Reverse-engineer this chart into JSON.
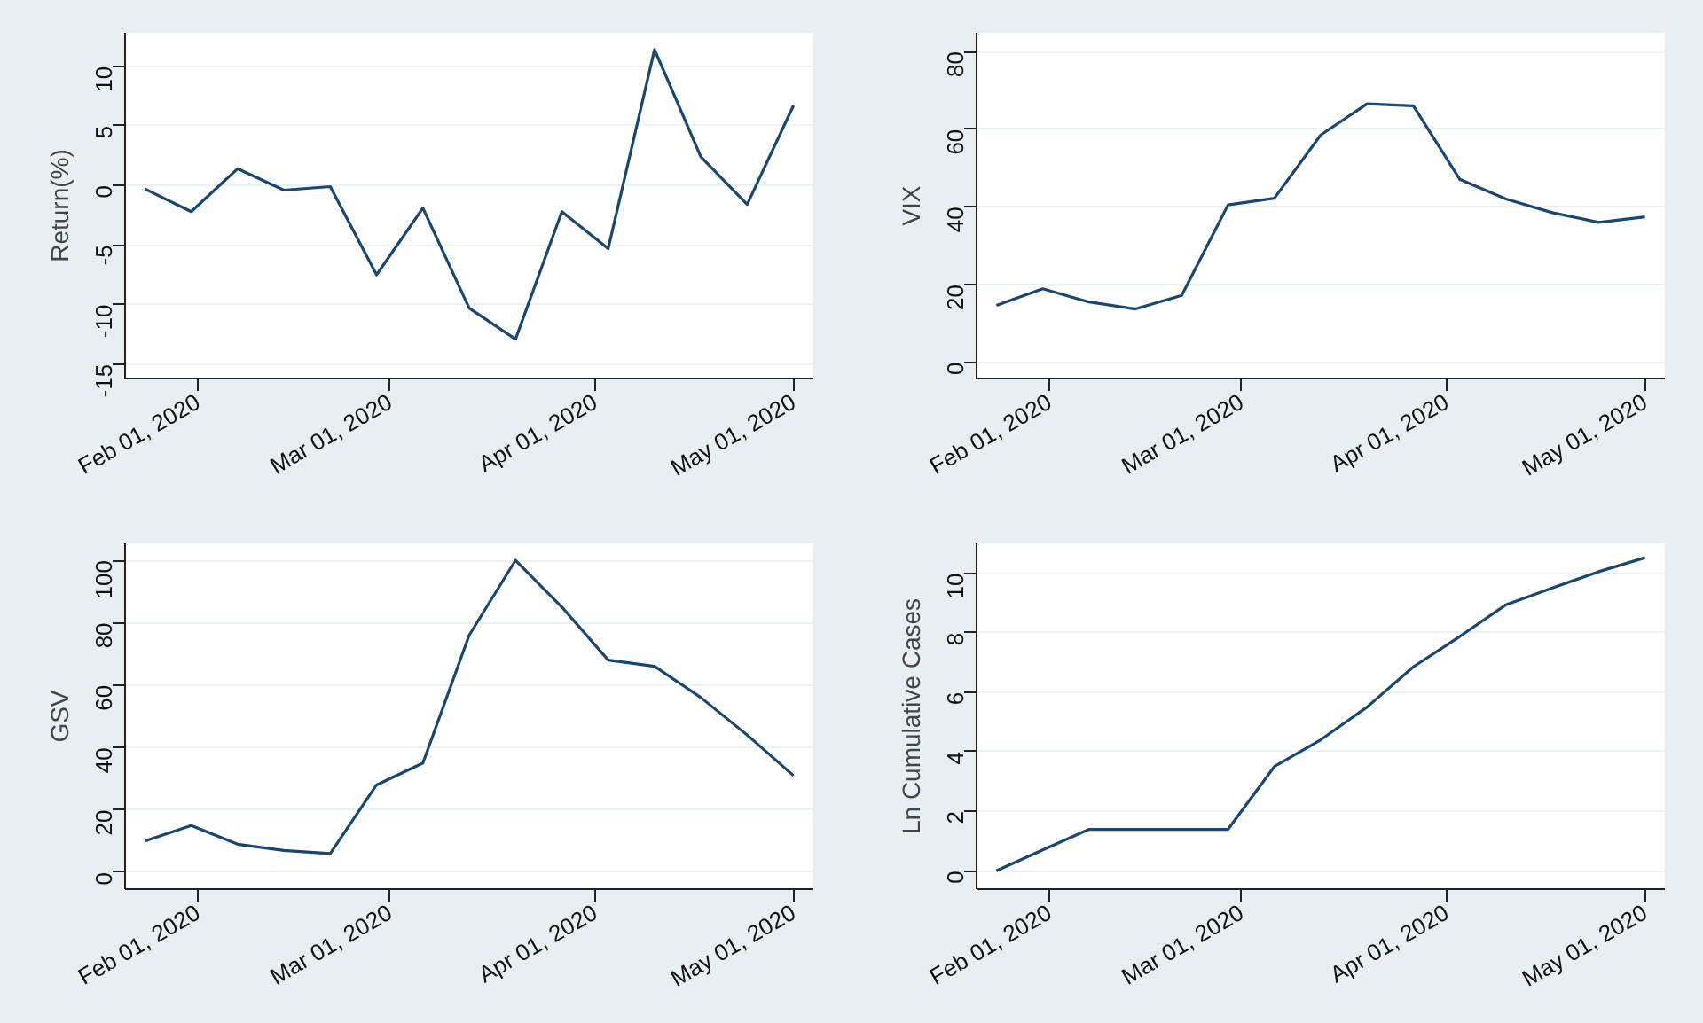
{
  "chart_data": [
    {
      "type": "line",
      "ylabel": "Return(%)",
      "x": [
        "2020-01-24",
        "2020-01-31",
        "2020-02-07",
        "2020-02-14",
        "2020-02-21",
        "2020-02-28",
        "2020-03-06",
        "2020-03-13",
        "2020-03-20",
        "2020-03-27",
        "2020-04-03",
        "2020-04-10",
        "2020-04-17",
        "2020-04-24",
        "2020-05-01"
      ],
      "series": [
        {
          "color": "#1a476f",
          "values": [
            -0.3,
            -2.2,
            1.4,
            -0.4,
            -0.1,
            -7.5,
            -1.9,
            -10.3,
            -12.9,
            -2.2,
            -5.3,
            11.4,
            2.4,
            -1.6,
            6.7
          ]
        }
      ],
      "xlim": [
        "2020-01-21",
        "2020-05-04"
      ],
      "xticks": [
        {
          "value": "2020-02-01",
          "label": "Feb 01, 2020"
        },
        {
          "value": "2020-03-01",
          "label": "Mar 01, 2020"
        },
        {
          "value": "2020-04-01",
          "label": "Apr 01, 2020"
        },
        {
          "value": "2020-05-01",
          "label": "May 01, 2020"
        }
      ],
      "ylim": [
        -16.2,
        12.8
      ],
      "yticks": [
        -15,
        -10,
        -5,
        0,
        5,
        10
      ],
      "grid": "y"
    },
    {
      "type": "line",
      "ylabel": "VIX",
      "x": [
        "2020-01-24",
        "2020-01-31",
        "2020-02-07",
        "2020-02-14",
        "2020-02-21",
        "2020-02-28",
        "2020-03-06",
        "2020-03-13",
        "2020-03-20",
        "2020-03-27",
        "2020-04-03",
        "2020-04-10",
        "2020-04-17",
        "2020-04-24",
        "2020-05-01"
      ],
      "series": [
        {
          "color": "#1a476f",
          "values": [
            14.6,
            18.9,
            15.5,
            13.7,
            17.2,
            40.5,
            42.2,
            58.5,
            66.5,
            66,
            47.1,
            42,
            38.5,
            36,
            37.4
          ]
        }
      ],
      "xlim": [
        "2020-01-21",
        "2020-05-04"
      ],
      "xticks": [
        {
          "value": "2020-02-01",
          "label": "Feb 01, 2020"
        },
        {
          "value": "2020-03-01",
          "label": "Mar 01, 2020"
        },
        {
          "value": "2020-04-01",
          "label": "Apr 01, 2020"
        },
        {
          "value": "2020-05-01",
          "label": "May 01, 2020"
        }
      ],
      "ylim": [
        -4.2,
        84.8
      ],
      "yticks": [
        0,
        20,
        40,
        60,
        80
      ],
      "grid": "y"
    },
    {
      "type": "line",
      "ylabel": "GSV",
      "x": [
        "2020-01-24",
        "2020-01-31",
        "2020-02-07",
        "2020-02-14",
        "2020-02-21",
        "2020-02-28",
        "2020-03-06",
        "2020-03-13",
        "2020-03-20",
        "2020-03-27",
        "2020-04-03",
        "2020-04-10",
        "2020-04-17",
        "2020-04-24",
        "2020-05-01"
      ],
      "series": [
        {
          "color": "#1a476f",
          "values": [
            10,
            15,
            9,
            7,
            6,
            28,
            35,
            76,
            100,
            85,
            68,
            66,
            56,
            44,
            31
          ]
        }
      ],
      "xlim": [
        "2020-01-21",
        "2020-05-04"
      ],
      "xticks": [
        {
          "value": "2020-02-01",
          "label": "Feb 01, 2020"
        },
        {
          "value": "2020-03-01",
          "label": "Mar 01, 2020"
        },
        {
          "value": "2020-04-01",
          "label": "Apr 01, 2020"
        },
        {
          "value": "2020-05-01",
          "label": "May 01, 2020"
        }
      ],
      "ylim": [
        -5.4,
        105.4
      ],
      "yticks": [
        0,
        20,
        40,
        60,
        80,
        100
      ],
      "grid": "y"
    },
    {
      "type": "line",
      "ylabel": "Ln Cumulative Cases",
      "x": [
        "2020-01-24",
        "2020-01-31",
        "2020-02-07",
        "2020-02-14",
        "2020-02-21",
        "2020-02-28",
        "2020-03-06",
        "2020-03-13",
        "2020-03-20",
        "2020-03-27",
        "2020-04-03",
        "2020-04-10",
        "2020-04-17",
        "2020-04-24",
        "2020-05-01"
      ],
      "series": [
        {
          "color": "#1a476f",
          "values": [
            0,
            0.7,
            1.39,
            1.39,
            1.39,
            1.39,
            3.5,
            4.4,
            5.5,
            6.85,
            7.87,
            8.94,
            9.5,
            10.05,
            10.52
          ]
        }
      ],
      "xlim": [
        "2020-01-21",
        "2020-05-04"
      ],
      "xticks": [
        {
          "value": "2020-02-01",
          "label": "Feb 01, 2020"
        },
        {
          "value": "2020-03-01",
          "label": "Mar 01, 2020"
        },
        {
          "value": "2020-04-01",
          "label": "Apr 01, 2020"
        },
        {
          "value": "2020-05-01",
          "label": "May 01, 2020"
        }
      ],
      "ylim": [
        -0.62,
        11.0
      ],
      "yticks": [
        0,
        2,
        4,
        6,
        8,
        10
      ],
      "grid": "y"
    }
  ]
}
